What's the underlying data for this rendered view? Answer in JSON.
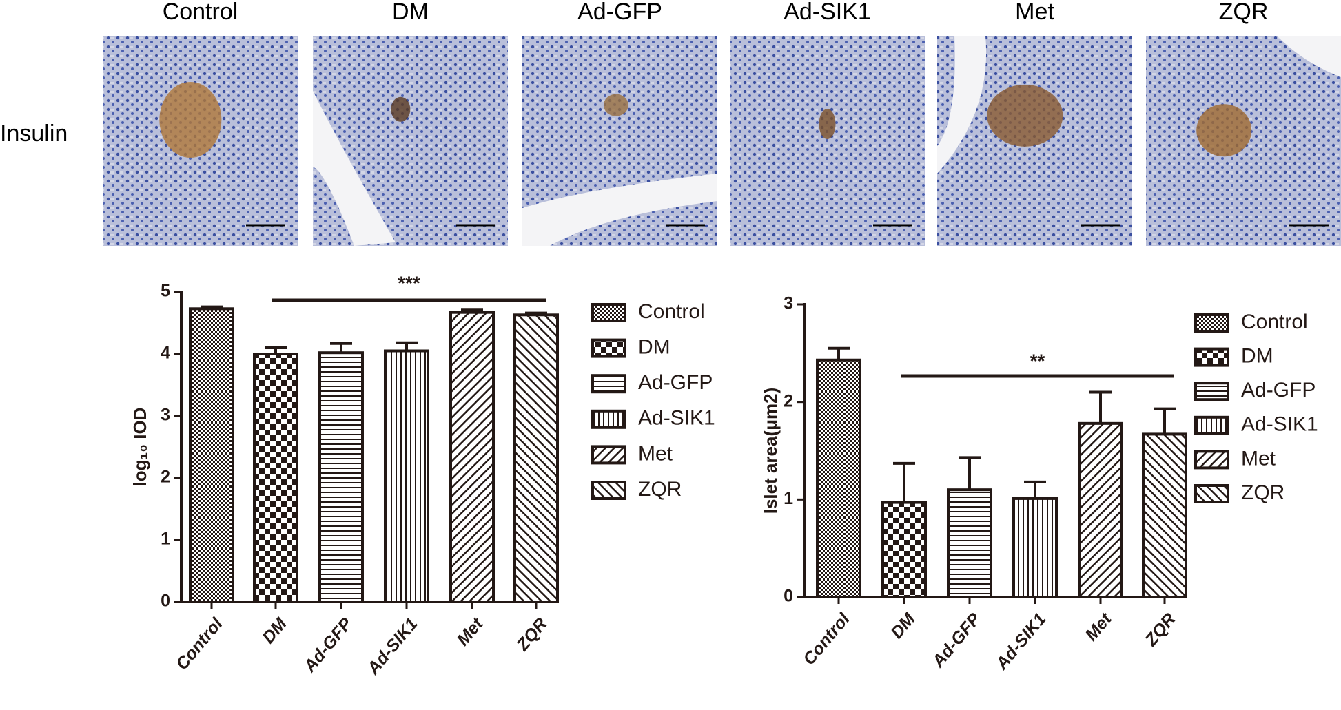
{
  "panels": {
    "row_label": "Insulin",
    "titles": [
      "Control",
      "DM",
      "Ad-GFP",
      "Ad-SIK1",
      "Met",
      "ZQR"
    ]
  },
  "chart_data": [
    {
      "type": "bar",
      "ylabel": "log₁₀ IOD",
      "categories": [
        "Control",
        "DM",
        "Ad-GFP",
        "Ad-SIK1",
        "Met",
        "ZQR"
      ],
      "values": [
        4.73,
        4.0,
        4.02,
        4.05,
        4.67,
        4.63
      ],
      "errors": [
        0.03,
        0.1,
        0.15,
        0.13,
        0.05,
        0.03
      ],
      "ylim": [
        0,
        5
      ],
      "yticks": [
        0,
        1,
        2,
        3,
        4,
        5
      ],
      "annotation": "***",
      "color": "#231815"
    },
    {
      "type": "bar",
      "ylabel": "Islet area(μm2)",
      "categories": [
        "Control",
        "DM",
        "Ad-GFP",
        "Ad-SIK1",
        "Met",
        "ZQR"
      ],
      "values": [
        2.43,
        0.97,
        1.1,
        1.01,
        1.78,
        1.67
      ],
      "errors": [
        0.12,
        0.4,
        0.33,
        0.17,
        0.32,
        0.26
      ],
      "ylim": [
        0,
        3
      ],
      "yticks": [
        0,
        1,
        2,
        3
      ],
      "annotation": "**",
      "color": "#231815"
    }
  ]
}
